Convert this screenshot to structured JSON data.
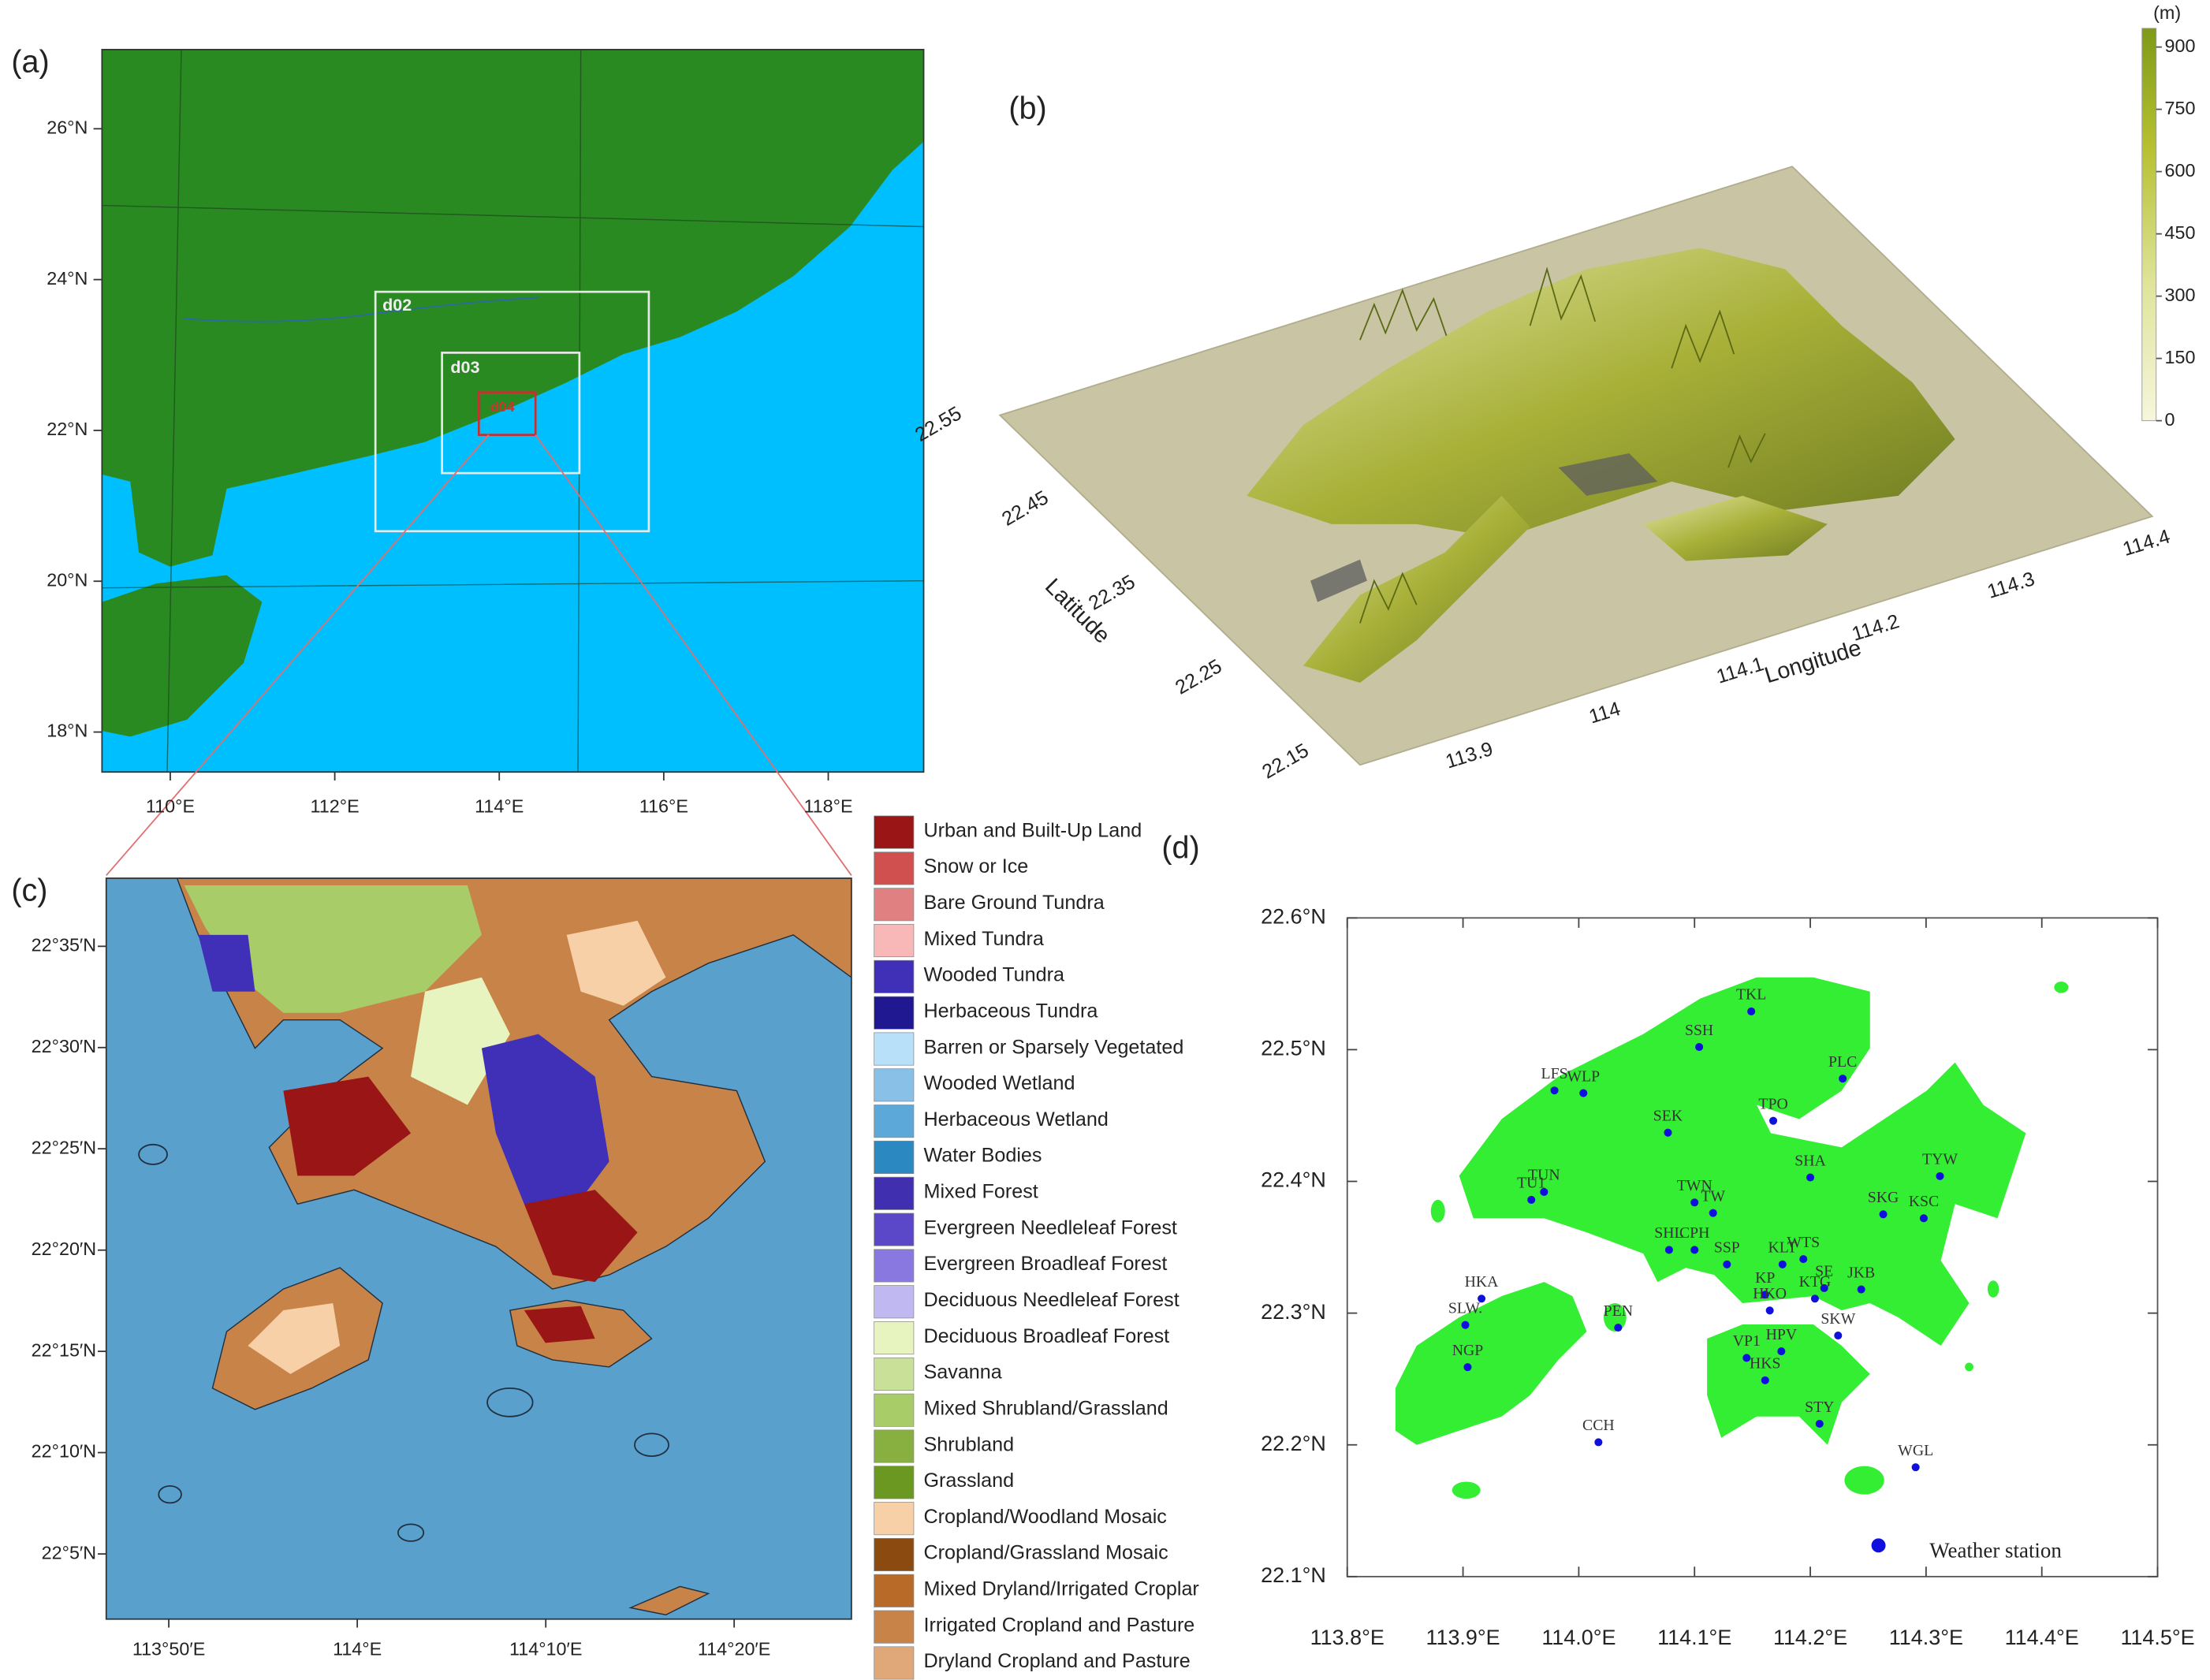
{
  "panel_a": {
    "label": "(a)",
    "lon_lim": [
      109.17,
      119.16
    ],
    "lat_lim": [
      17.47,
      27.05
    ],
    "lat_ticks": [
      {
        "value": 26,
        "label": "26°N"
      },
      {
        "value": 24,
        "label": "24°N"
      },
      {
        "value": 22,
        "label": "22°N"
      },
      {
        "value": 20,
        "label": "20°N"
      },
      {
        "value": 18,
        "label": "18°N"
      }
    ],
    "lon_ticks": [
      {
        "value": 110,
        "label": "110°E"
      },
      {
        "value": 112,
        "label": "112°E"
      },
      {
        "value": 114,
        "label": "114°E"
      },
      {
        "value": 116,
        "label": "116°E"
      },
      {
        "value": 118,
        "label": "118°E"
      }
    ],
    "domains": [
      "d02",
      "d03",
      "d04"
    ],
    "land_color": "#2a8a22",
    "ocean_color": "#00bfff"
  },
  "panel_b": {
    "label": "(b)",
    "lat_label": "Latitude",
    "lon_label": "Longitude",
    "lat_lim": [
      22.13,
      22.545
    ],
    "lon_lim": [
      113.84,
      114.425
    ],
    "lat_ticks": [
      22.15,
      22.25,
      22.35,
      22.45,
      22.55
    ],
    "lon_ticks": [
      113.9,
      114,
      114.1,
      114.2,
      114.3,
      114.4
    ],
    "colorbar": {
      "unit": "(m)",
      "lim": [
        0,
        945
      ],
      "ticks": [
        0,
        150,
        300,
        450,
        600,
        750,
        900
      ]
    }
  },
  "panel_c": {
    "label": "(c)",
    "lon_lim": [
      113.778,
      114.437
    ],
    "lat_lim": [
      22.0297,
      22.6393
    ],
    "lat_ticks": [
      {
        "value": 22.5833,
        "label": "22°35′N"
      },
      {
        "value": 22.5,
        "label": "22°30′N"
      },
      {
        "value": 22.4167,
        "label": "22°25′N"
      },
      {
        "value": 22.3333,
        "label": "22°20′N"
      },
      {
        "value": 22.25,
        "label": "22°15′N"
      },
      {
        "value": 22.1667,
        "label": "22°10′N"
      },
      {
        "value": 22.0833,
        "label": "22°5′N"
      }
    ],
    "lon_ticks": [
      {
        "value": 113.8333,
        "label": "113°50′E"
      },
      {
        "value": 114,
        "label": "114°E"
      },
      {
        "value": 114.1667,
        "label": "114°10′E"
      },
      {
        "value": 114.3333,
        "label": "114°20′E"
      }
    ],
    "legend": [
      {
        "name": "Urban and Built-Up Land",
        "color": "#9a1515"
      },
      {
        "name": "Snow or Ice",
        "color": "#d05050"
      },
      {
        "name": "Bare Ground Tundra",
        "color": "#e08080"
      },
      {
        "name": "Mixed Tundra",
        "color": "#f8b8b8"
      },
      {
        "name": "Wooded Tundra",
        "color": "#4030b8"
      },
      {
        "name": "Herbaceous Tundra",
        "color": "#201890"
      },
      {
        "name": "Barren or Sparsely Vegetated",
        "color": "#b8e0f8"
      },
      {
        "name": "Wooded Wetland",
        "color": "#88c0e8"
      },
      {
        "name": "Herbaceous Wetland",
        "color": "#5ca8d8"
      },
      {
        "name": "Water Bodies",
        "color": "#2c88c0"
      },
      {
        "name": "Mixed Forest",
        "color": "#4030b0"
      },
      {
        "name": "Evergreen Needleleaf Forest",
        "color": "#5a48c8"
      },
      {
        "name": "Evergreen Broadleaf Forest",
        "color": "#8878e0"
      },
      {
        "name": "Deciduous Needleleaf Forest",
        "color": "#c0b8f0"
      },
      {
        "name": "Deciduous Broadleaf Forest",
        "color": "#e8f4c0"
      },
      {
        "name": "Savanna",
        "color": "#c8e098"
      },
      {
        "name": "Mixed Shrubland/Grassland",
        "color": "#a8cc68"
      },
      {
        "name": "Shrubland",
        "color": "#88b040"
      },
      {
        "name": "Grassland",
        "color": "#6a9820"
      },
      {
        "name": "Cropland/Woodland Mosaic",
        "color": "#f8d0a8"
      },
      {
        "name": "Cropland/Grassland Mosaic",
        "color": "#8a4a10"
      },
      {
        "name": "Mixed Dryland/Irrigated Croplar",
        "color": "#b86a28"
      },
      {
        "name": "Irrigated Cropland and Pasture",
        "color": "#c88448"
      },
      {
        "name": "Dryland Cropland and Pasture",
        "color": "#e0a878"
      }
    ]
  },
  "panel_d": {
    "label": "(d)",
    "lon_lim": [
      113.8,
      114.5
    ],
    "lat_lim": [
      22.1,
      22.6
    ],
    "lat_ticks": [
      {
        "value": 22.6,
        "label": "22.6°N"
      },
      {
        "value": 22.5,
        "label": "22.5°N"
      },
      {
        "value": 22.4,
        "label": "22.4°N"
      },
      {
        "value": 22.3,
        "label": "22.3°N"
      },
      {
        "value": 22.2,
        "label": "22.2°N"
      },
      {
        "value": 22.1,
        "label": "22.1°N"
      }
    ],
    "lon_ticks": [
      {
        "value": 113.8,
        "label": "113.8°E"
      },
      {
        "value": 113.9,
        "label": "113.9°E"
      },
      {
        "value": 114.0,
        "label": "114.0°E"
      },
      {
        "value": 114.1,
        "label": "114.1°E"
      },
      {
        "value": 114.2,
        "label": "114.2°E"
      },
      {
        "value": 114.3,
        "label": "114.3°E"
      },
      {
        "value": 114.4,
        "label": "114.4°E"
      },
      {
        "value": 114.5,
        "label": "114.5°E"
      }
    ],
    "station_color": "#1010dd",
    "land_color": "#33ee33",
    "legend": "Weather station",
    "stations": [
      {
        "name": "TKL",
        "lon": 114.149,
        "lat": 22.529
      },
      {
        "name": "SSH",
        "lon": 114.104,
        "lat": 22.502
      },
      {
        "name": "PLC",
        "lon": 114.228,
        "lat": 22.478
      },
      {
        "name": "LFS",
        "lon": 113.979,
        "lat": 22.469
      },
      {
        "name": "WLP",
        "lon": 114.004,
        "lat": 22.467
      },
      {
        "name": "TPO",
        "lon": 114.168,
        "lat": 22.446
      },
      {
        "name": "SEK",
        "lon": 114.077,
        "lat": 22.437
      },
      {
        "name": "SHA",
        "lon": 114.2,
        "lat": 22.403
      },
      {
        "name": "TYW",
        "lon": 114.312,
        "lat": 22.404
      },
      {
        "name": "TUN",
        "lon": 113.97,
        "lat": 22.392
      },
      {
        "name": "TU1",
        "lon": 113.959,
        "lat": 22.386
      },
      {
        "name": "TWN",
        "lon": 114.1,
        "lat": 22.384
      },
      {
        "name": "TW",
        "lon": 114.116,
        "lat": 22.376
      },
      {
        "name": "SKG",
        "lon": 114.263,
        "lat": 22.375
      },
      {
        "name": "KSC",
        "lon": 114.298,
        "lat": 22.372
      },
      {
        "name": "SHL",
        "lon": 114.078,
        "lat": 22.348
      },
      {
        "name": "CPH",
        "lon": 114.1,
        "lat": 22.348
      },
      {
        "name": "SSP",
        "lon": 114.128,
        "lat": 22.337
      },
      {
        "name": "KLT",
        "lon": 114.176,
        "lat": 22.337
      },
      {
        "name": "WTS",
        "lon": 114.194,
        "lat": 22.341
      },
      {
        "name": "KP",
        "lon": 114.161,
        "lat": 22.314
      },
      {
        "name": "SE",
        "lon": 114.212,
        "lat": 22.319
      },
      {
        "name": "JKB",
        "lon": 114.244,
        "lat": 22.318
      },
      {
        "name": "HKA",
        "lon": 113.916,
        "lat": 22.311
      },
      {
        "name": "HKO",
        "lon": 114.165,
        "lat": 22.302
      },
      {
        "name": "KTG",
        "lon": 114.204,
        "lat": 22.311
      },
      {
        "name": "SLW.",
        "lon": 113.902,
        "lat": 22.291
      },
      {
        "name": "PEN",
        "lon": 114.034,
        "lat": 22.289
      },
      {
        "name": "SKW",
        "lon": 114.224,
        "lat": 22.283
      },
      {
        "name": "VP1",
        "lon": 114.145,
        "lat": 22.266
      },
      {
        "name": "HPV",
        "lon": 114.175,
        "lat": 22.271
      },
      {
        "name": "NGP",
        "lon": 113.904,
        "lat": 22.259
      },
      {
        "name": "HKS",
        "lon": 114.161,
        "lat": 22.249
      },
      {
        "name": "STY",
        "lon": 114.208,
        "lat": 22.216
      },
      {
        "name": "CCH",
        "lon": 114.017,
        "lat": 22.202
      },
      {
        "name": "WGL",
        "lon": 114.291,
        "lat": 22.183
      }
    ]
  }
}
